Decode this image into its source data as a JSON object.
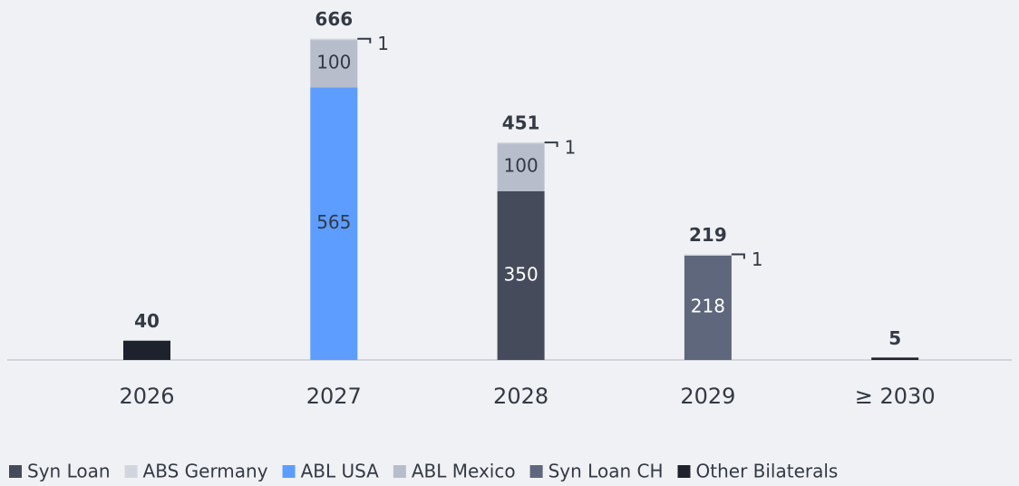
{
  "chart_data": {
    "type": "stacked_bar",
    "categories": [
      "2026",
      "2027",
      "2028",
      "2029",
      "≥ 2030"
    ],
    "series": [
      {
        "name": "Syn Loan",
        "color": "#464b5b",
        "values": [
          null,
          null,
          350,
          null,
          null
        ]
      },
      {
        "name": "ABS Germany",
        "color": "#d1d5dd",
        "values": [
          null,
          1,
          1,
          1,
          null
        ]
      },
      {
        "name": "ABL USA",
        "color": "#5c9dff",
        "values": [
          null,
          565,
          null,
          null,
          null
        ]
      },
      {
        "name": "ABL Mexico",
        "color": "#b8bdcc",
        "values": [
          null,
          100,
          100,
          null,
          null
        ]
      },
      {
        "name": "Syn Loan CH",
        "color": "#5e677b",
        "values": [
          null,
          null,
          null,
          218,
          null
        ]
      },
      {
        "name": "Other Bilaterals",
        "color": "#1e222c",
        "values": [
          40,
          null,
          null,
          null,
          5
        ]
      }
    ],
    "totals": [
      40,
      666,
      451,
      219,
      5
    ]
  }
}
